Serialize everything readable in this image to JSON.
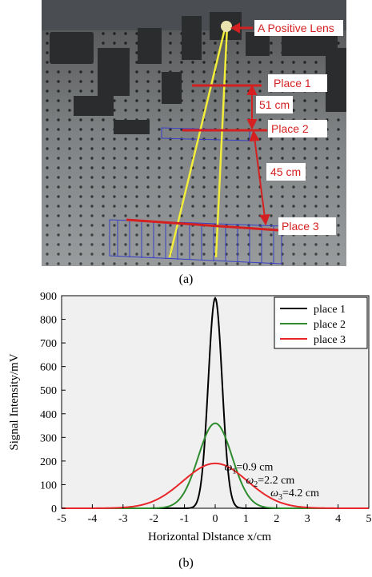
{
  "figure": {
    "photo_caption": "(a)",
    "chart_caption": "(b)"
  },
  "photo": {
    "lens_label": "A Positive Lens",
    "places": [
      "Place 1",
      "Place 2",
      "Place 3"
    ],
    "distances": [
      "51 cm",
      "45 cm"
    ],
    "colors": {
      "annotation": "#d42020",
      "beam": "#f2ee3a",
      "label_box": "#ffffff"
    }
  },
  "chart_data": {
    "type": "line",
    "xlabel": "Horizontal Dlstance x/cm",
    "ylabel": "Signal Intensity/mV",
    "xlim": [
      -5,
      5
    ],
    "ylim": [
      0,
      900
    ],
    "xticks": [
      -5,
      -4,
      -3,
      -2,
      -1,
      0,
      1,
      2,
      3,
      4,
      5
    ],
    "yticks": [
      0,
      100,
      200,
      300,
      400,
      500,
      600,
      700,
      800,
      900
    ],
    "grid": false,
    "legend_position": "top-right",
    "series": [
      {
        "name": "place 1",
        "color": "#000000",
        "peak": 890,
        "waist_cm": 0.9
      },
      {
        "name": "place 2",
        "color": "#2e8b2e",
        "peak": 360,
        "waist_cm": 2.2
      },
      {
        "name": "place 3",
        "color": "#e8262a",
        "peak": 190,
        "waist_cm": 4.2
      }
    ],
    "annotations": [
      {
        "symbol": "ω",
        "sub": "1",
        "text": "=0.9 cm",
        "x": 0.3,
        "y": 160
      },
      {
        "symbol": "ω",
        "sub": "2",
        "text": "=2.2 cm",
        "x": 1.0,
        "y": 105
      },
      {
        "symbol": "ω",
        "sub": "3",
        "text": "=4.2 cm",
        "x": 1.8,
        "y": 50
      }
    ]
  }
}
